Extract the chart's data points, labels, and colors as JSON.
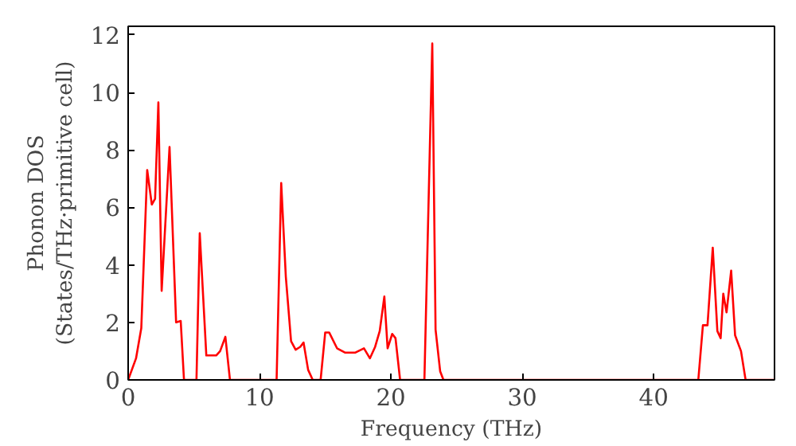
{
  "chart_data": {
    "type": "line",
    "xlabel": "Frequency (THz)",
    "ylabel": "Phonon DOS\n(States/THz·primitive cell)",
    "x": [
      0,
      0.6,
      1.0,
      1.45,
      1.8,
      2.05,
      2.3,
      2.55,
      3.15,
      3.65,
      4.0,
      4.25,
      5.2,
      5.45,
      5.95,
      6.7,
      7.0,
      7.4,
      7.75,
      11.3,
      11.65,
      12.0,
      12.4,
      12.75,
      13.1,
      13.35,
      13.7,
      14.05,
      14.65,
      15.0,
      15.3,
      15.9,
      16.5,
      17.3,
      17.95,
      18.4,
      18.8,
      19.15,
      19.5,
      19.75,
      20.1,
      20.35,
      20.7,
      22.55,
      23.15,
      23.4,
      23.75,
      24.0,
      43.4,
      43.75,
      44.1,
      44.5,
      44.85,
      45.1,
      45.3,
      45.55,
      45.9,
      46.2,
      46.65,
      47.0,
      49.2
    ],
    "series": [
      {
        "color": "#ff0000",
        "values": [
          0,
          0.75,
          1.8,
          7.3,
          6.1,
          6.3,
          9.65,
          3.1,
          8.1,
          2.0,
          2.05,
          0,
          0,
          5.1,
          0.85,
          0.85,
          1.0,
          1.5,
          0,
          0,
          6.85,
          3.6,
          1.35,
          1.05,
          1.15,
          1.3,
          0.35,
          0,
          0,
          1.65,
          1.65,
          1.1,
          0.95,
          0.95,
          1.1,
          0.75,
          1.15,
          1.7,
          2.9,
          1.1,
          1.6,
          1.45,
          0,
          0,
          11.7,
          1.75,
          0.3,
          0,
          0,
          1.9,
          1.9,
          4.6,
          1.7,
          1.45,
          3.0,
          2.35,
          3.8,
          1.55,
          1.0,
          0,
          0
        ]
      }
    ],
    "xlim": [
      0,
      49.2
    ],
    "ylim": [
      0,
      12.3
    ],
    "xticks": [
      0,
      10,
      20,
      30,
      40
    ],
    "yticks": [
      0,
      2,
      4,
      6,
      8,
      10,
      12
    ],
    "grid": false,
    "marker": "none",
    "line_style": "solid"
  }
}
